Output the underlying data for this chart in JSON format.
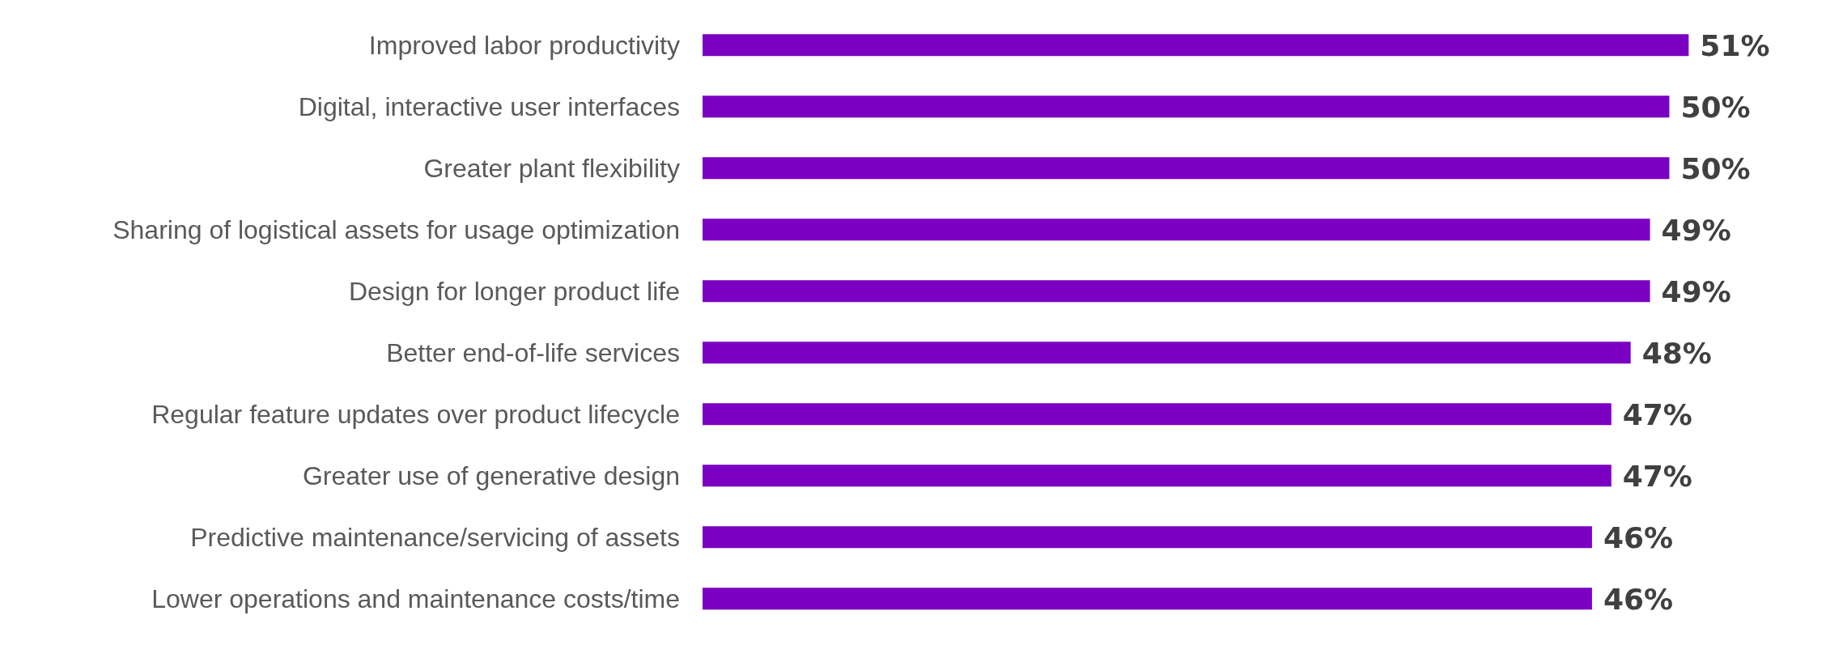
{
  "chart_data": {
    "type": "bar",
    "orientation": "horizontal",
    "categories": [
      "Improved labor productivity",
      "Digital, interactive user interfaces",
      "Greater plant flexibility",
      "Sharing of logistical assets for usage optimization",
      "Design for longer product life",
      "Better end-of-life services",
      "Regular feature updates over product lifecycle",
      "Greater use of generative design",
      "Predictive maintenance/servicing of assets",
      "Lower operations and maintenance costs/time"
    ],
    "values": [
      51,
      50,
      50,
      49,
      49,
      48,
      47,
      47,
      46,
      46
    ],
    "value_labels": [
      "51%",
      "50%",
      "50%",
      "49%",
      "49%",
      "48%",
      "47%",
      "47%",
      "46%",
      "46%"
    ],
    "color": "#7b00c2",
    "tick_labels": "y"
  }
}
